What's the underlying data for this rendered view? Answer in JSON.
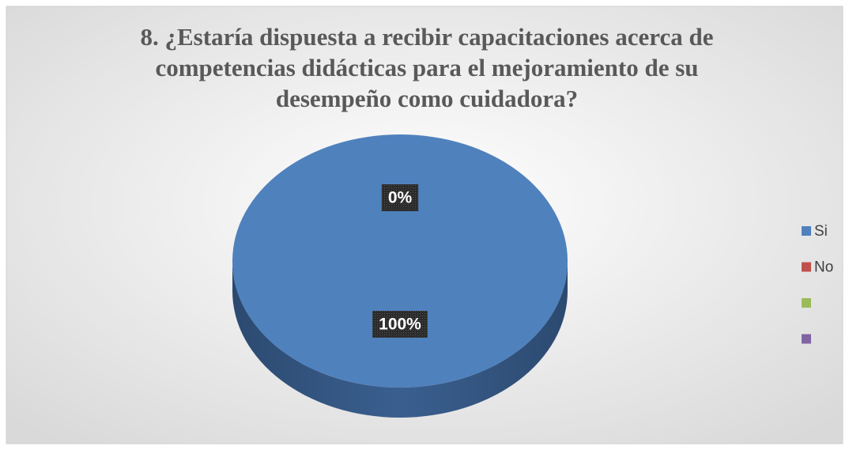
{
  "chart_data": {
    "type": "pie",
    "title": [
      "8. ¿Estaría dispuesta a recibir capacitaciones acerca de",
      "competencias didácticas para el mejoramiento de su",
      "desempeño como cuidadora?"
    ],
    "categories": [
      "Si",
      "No",
      null,
      null
    ],
    "values": [
      100,
      0,
      0,
      0
    ],
    "value_labels": [
      "100%",
      "0%",
      null,
      null
    ],
    "colors": [
      "#4f81bd",
      "#c0504d",
      "#9bbb59",
      "#8064a2"
    ],
    "legend": "right"
  }
}
